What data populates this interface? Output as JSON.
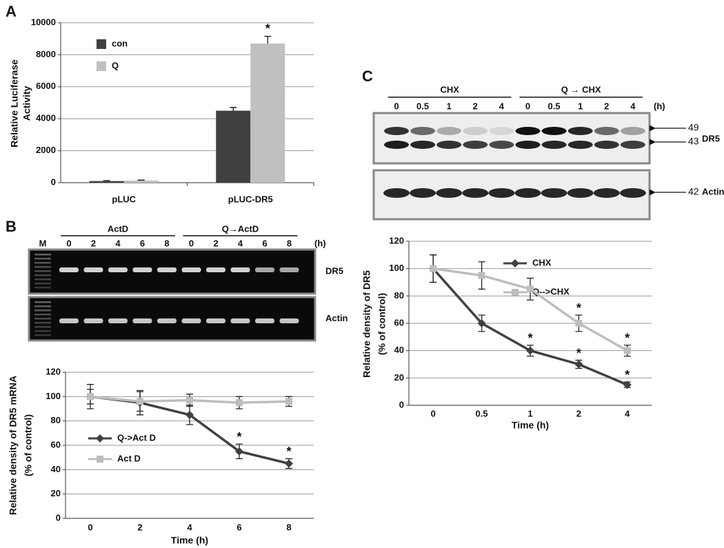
{
  "chart_data": [
    {
      "type": "bar",
      "panel": "A",
      "ylabel": [
        "Relative Luciferase",
        "Activity"
      ],
      "categories": [
        "pLUC",
        "pLUC-DR5"
      ],
      "series": [
        {
          "name": "con",
          "color": "#404040",
          "values": [
            100,
            4500
          ],
          "errors": [
            30,
            200
          ]
        },
        {
          "name": "Q",
          "color": "#c0c0c0",
          "values": [
            130,
            8700
          ],
          "errors": [
            30,
            450
          ],
          "significance": [
            null,
            "*"
          ]
        }
      ],
      "ylim": [
        0,
        10000
      ],
      "yticks": [
        0,
        2000,
        4000,
        6000,
        8000,
        10000
      ],
      "grid": true,
      "legend": "upper-left"
    },
    {
      "type": "line",
      "panel": "B",
      "ylabel": [
        "Relative density of DR5 mRNA",
        "(% of control)"
      ],
      "xlabel": "Time (h)",
      "categories": [
        "0",
        "2",
        "4",
        "6",
        "8"
      ],
      "series": [
        {
          "name": "Q->Act D",
          "color": "#404040",
          "marker": "diamond",
          "values": [
            100,
            95,
            85,
            55,
            45
          ],
          "errors": [
            10,
            10,
            8,
            6,
            4
          ],
          "significance": [
            null,
            null,
            null,
            "*",
            "*"
          ]
        },
        {
          "name": "Act D",
          "color": "#bdbdbd",
          "marker": "square",
          "values": [
            100,
            96,
            97,
            95,
            96
          ],
          "errors": [
            6,
            8,
            5,
            5,
            4
          ]
        }
      ],
      "ylim": [
        0,
        120
      ],
      "yticks": [
        0,
        20,
        40,
        60,
        80,
        100,
        120
      ],
      "grid": true,
      "legend": "center-left"
    },
    {
      "type": "line",
      "panel": "C",
      "ylabel": [
        "Relative density of DR5",
        "(% of control)"
      ],
      "xlabel": "Time (h)",
      "categories": [
        "0",
        "0.5",
        "1",
        "2",
        "4"
      ],
      "series": [
        {
          "name": "CHX",
          "color": "#404040",
          "marker": "diamond",
          "values": [
            100,
            60,
            40,
            30,
            15
          ],
          "errors": [
            10,
            6,
            4,
            3,
            2
          ],
          "significance": [
            null,
            null,
            "*",
            "*",
            "*"
          ]
        },
        {
          "name": "Q-->CHX",
          "color": "#bdbdbd",
          "marker": "square",
          "values": [
            100,
            95,
            85,
            60,
            40
          ],
          "errors": [
            10,
            10,
            8,
            6,
            4
          ],
          "significance": [
            null,
            null,
            null,
            "*",
            "*"
          ]
        }
      ],
      "ylim": [
        0,
        120
      ],
      "yticks": [
        0,
        20,
        40,
        60,
        80,
        100,
        120
      ],
      "grid": true,
      "legend": "upper-right"
    }
  ],
  "gels": [
    {
      "marker": "M",
      "groups": [
        "ActD",
        "Q→ActD"
      ],
      "lanes": [
        "0",
        "2",
        "4",
        "6",
        "8",
        "0",
        "2",
        "4",
        "6",
        "8"
      ],
      "unit": "(h)",
      "rows": [
        "DR5",
        "Actin"
      ]
    },
    {
      "groups": [
        "CHX",
        "Q → CHX"
      ],
      "lanes": [
        "0",
        "0.5",
        "1",
        "2",
        "4",
        "0",
        "0.5",
        "1",
        "2",
        "4"
      ],
      "unit": "(h)",
      "bands": [
        {
          "size": "49"
        },
        {
          "size": "43",
          "label": "DR5"
        },
        {
          "size": "42",
          "label": "Actin"
        }
      ]
    }
  ]
}
